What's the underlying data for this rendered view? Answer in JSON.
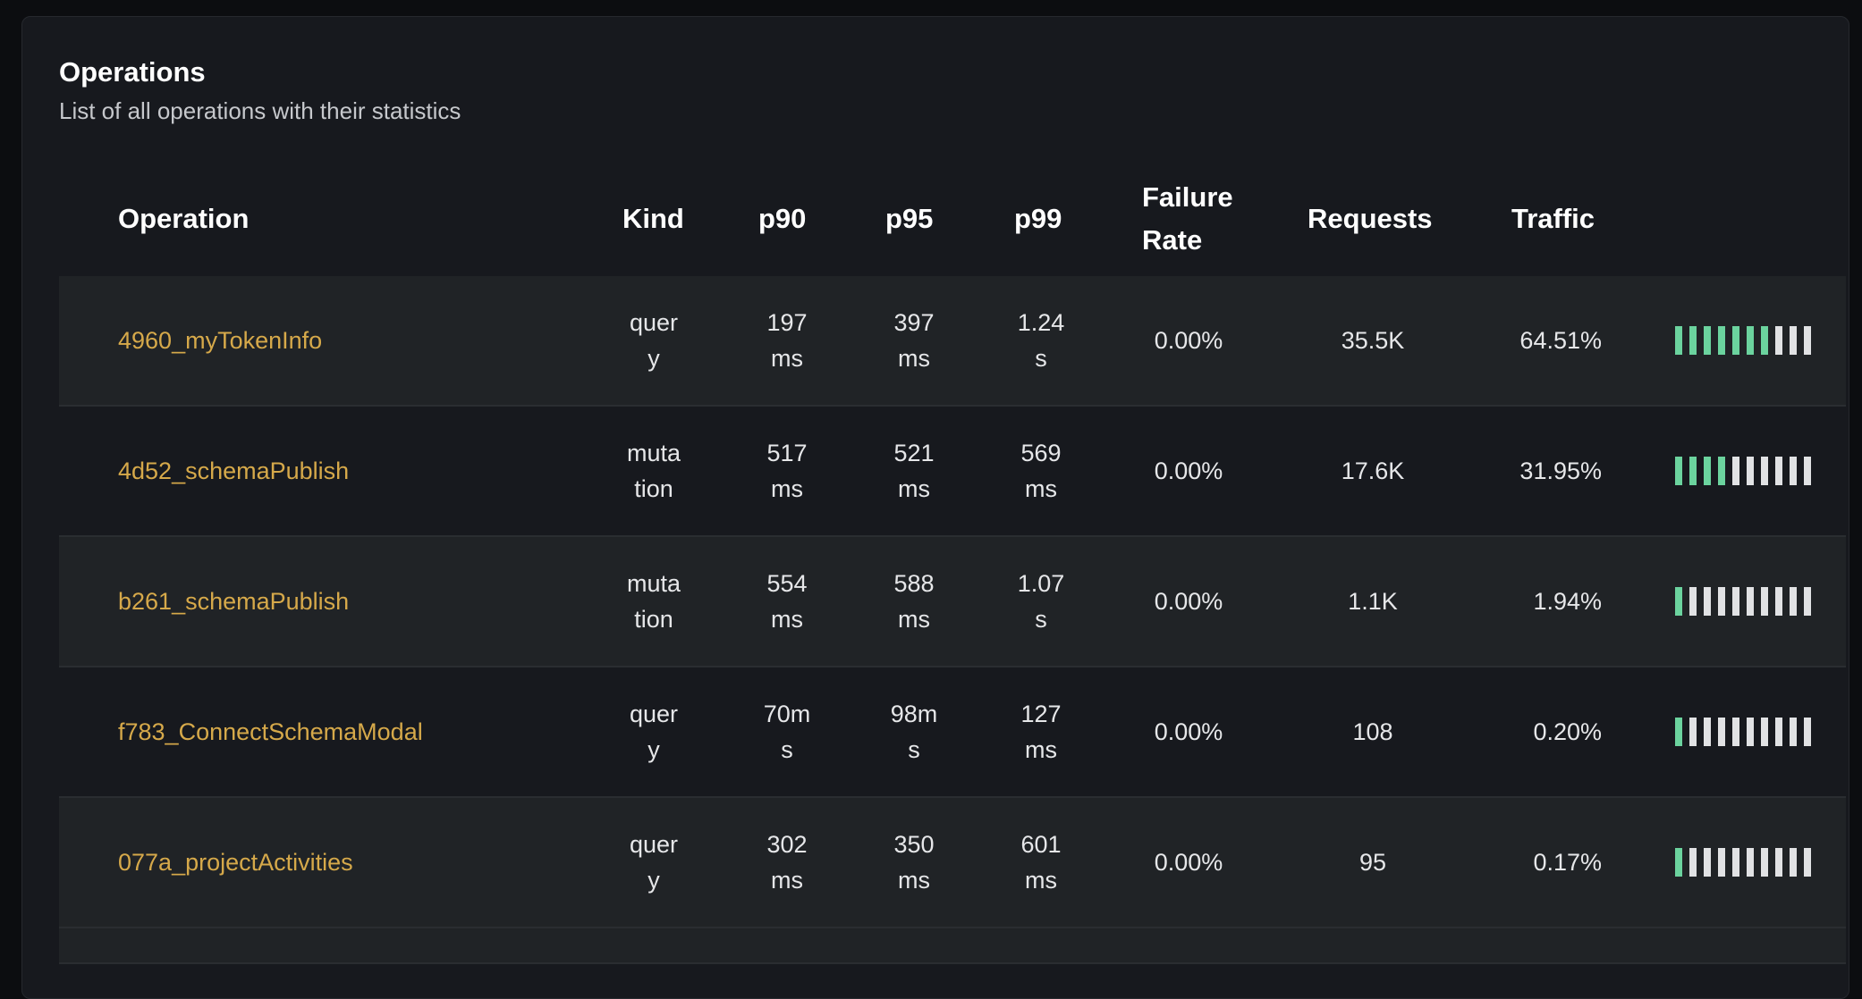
{
  "header": {
    "title": "Operations",
    "subtitle": "List of all operations with their statistics"
  },
  "columns": {
    "operation": "Operation",
    "kind": "Kind",
    "p90": "p90",
    "p95": "p95",
    "p99": "p99",
    "failure_rate": "Failure Rate",
    "requests": "Requests",
    "traffic": "Traffic"
  },
  "colors": {
    "operation_name": "#d6a94a",
    "traffic_filled": "#6bd39e",
    "traffic_empty": "#e1e2e4"
  },
  "rows": [
    {
      "name": "4960_myTokenInfo",
      "kind": "query",
      "p90": "197 ms",
      "p95": "397 ms",
      "p99": "1.24 s",
      "failure_rate": "0.00%",
      "requests": "35.5K",
      "traffic": "64.51%",
      "traffic_bars_filled": 7
    },
    {
      "name": "4d52_schemaPublish",
      "kind": "mutation",
      "p90": "517 ms",
      "p95": "521 ms",
      "p99": "569 ms",
      "failure_rate": "0.00%",
      "requests": "17.6K",
      "traffic": "31.95%",
      "traffic_bars_filled": 4
    },
    {
      "name": "b261_schemaPublish",
      "kind": "mutation",
      "p90": "554 ms",
      "p95": "588 ms",
      "p99": "1.07 s",
      "failure_rate": "0.00%",
      "requests": "1.1K",
      "traffic": "1.94%",
      "traffic_bars_filled": 1
    },
    {
      "name": "f783_ConnectSchemaModal",
      "kind": "query",
      "p90": "70ms",
      "p95": "98ms",
      "p99": "127 ms",
      "failure_rate": "0.00%",
      "requests": "108",
      "traffic": "0.20%",
      "traffic_bars_filled": 1
    },
    {
      "name": "077a_projectActivities",
      "kind": "query",
      "p90": "302 ms",
      "p95": "350 ms",
      "p99": "601 ms",
      "failure_rate": "0.00%",
      "requests": "95",
      "traffic": "0.17%",
      "traffic_bars_filled": 1
    }
  ]
}
